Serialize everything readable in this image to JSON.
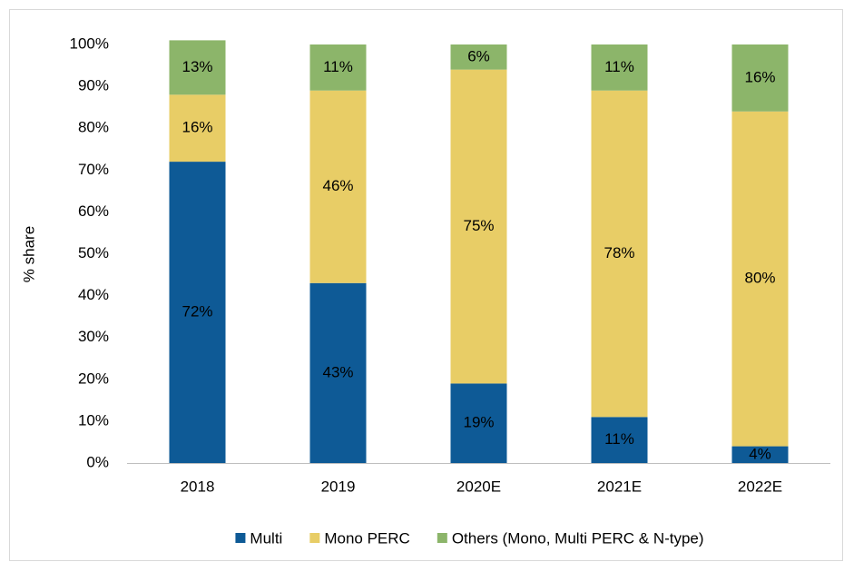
{
  "chart_data": {
    "type": "stacked_bar",
    "y_label": "% share",
    "categories": [
      "2018",
      "2019",
      "2020E",
      "2021E",
      "2022E"
    ],
    "series": [
      {
        "name": "Multi",
        "color": "#0e5a96",
        "values": [
          72,
          43,
          19,
          11,
          4
        ],
        "value_labels": [
          "72%",
          "43%",
          "19%",
          "11%",
          "4%"
        ]
      },
      {
        "name": "Mono PERC",
        "color": "#e8cd66",
        "values": [
          16,
          46,
          75,
          78,
          80
        ],
        "value_labels": [
          "16%",
          "46%",
          "75%",
          "78%",
          "80%"
        ]
      },
      {
        "name": "Others (Mono, Multi PERC & N-type)",
        "color": "#8cb56a",
        "values": [
          13,
          11,
          6,
          11,
          16
        ],
        "value_labels": [
          "13%",
          "11%",
          "6%",
          "11%",
          "16%"
        ]
      }
    ],
    "ylim": [
      0,
      100
    ],
    "yticks": [
      {
        "value": 0,
        "label": "0%"
      },
      {
        "value": 10,
        "label": "10%"
      },
      {
        "value": 20,
        "label": "20%"
      },
      {
        "value": 30,
        "label": "30%"
      },
      {
        "value": 40,
        "label": "40%"
      },
      {
        "value": 50,
        "label": "50%"
      },
      {
        "value": 60,
        "label": "60%"
      },
      {
        "value": 70,
        "label": "70%"
      },
      {
        "value": 80,
        "label": "80%"
      },
      {
        "value": 90,
        "label": "90%"
      },
      {
        "value": 100,
        "label": "100%"
      }
    ],
    "legend": "bottom"
  }
}
